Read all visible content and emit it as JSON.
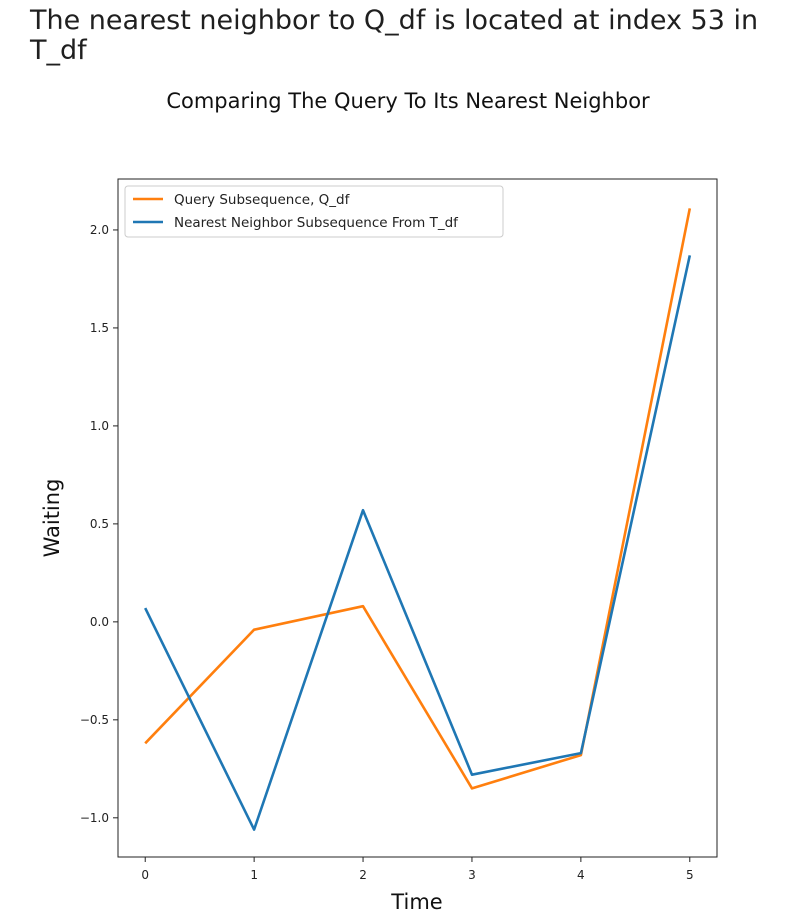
{
  "header": {
    "message": "The nearest neighbor to Q_df is located at index 53 in T_df"
  },
  "chart_data": {
    "type": "line",
    "title": "Comparing The Query To Its Nearest Neighbor",
    "xlabel": "Time",
    "ylabel": "Waiting",
    "x": [
      0,
      1,
      2,
      3,
      4,
      5
    ],
    "xticks": [
      "0",
      "1",
      "2",
      "3",
      "4",
      "5"
    ],
    "yticks": [
      "−1.0",
      "−0.5",
      "0.0",
      "0.5",
      "1.0",
      "1.5",
      "2.0"
    ],
    "ytick_values": [
      -1.0,
      -0.5,
      0.0,
      0.5,
      1.0,
      1.5,
      2.0
    ],
    "xlim": [
      -0.25,
      5.25
    ],
    "ylim": [
      -1.2,
      2.26
    ],
    "grid": false,
    "legend_position": "top-left",
    "series": [
      {
        "name": "Query Subsequence, Q_df",
        "color": "#ff7f0e",
        "values": [
          -0.62,
          -0.04,
          0.08,
          -0.85,
          -0.68,
          2.11
        ]
      },
      {
        "name": "Nearest Neighbor Subsequence From T_df",
        "color": "#1f77b4",
        "values": [
          0.07,
          -1.06,
          0.57,
          -0.78,
          -0.67,
          1.87
        ]
      }
    ]
  }
}
